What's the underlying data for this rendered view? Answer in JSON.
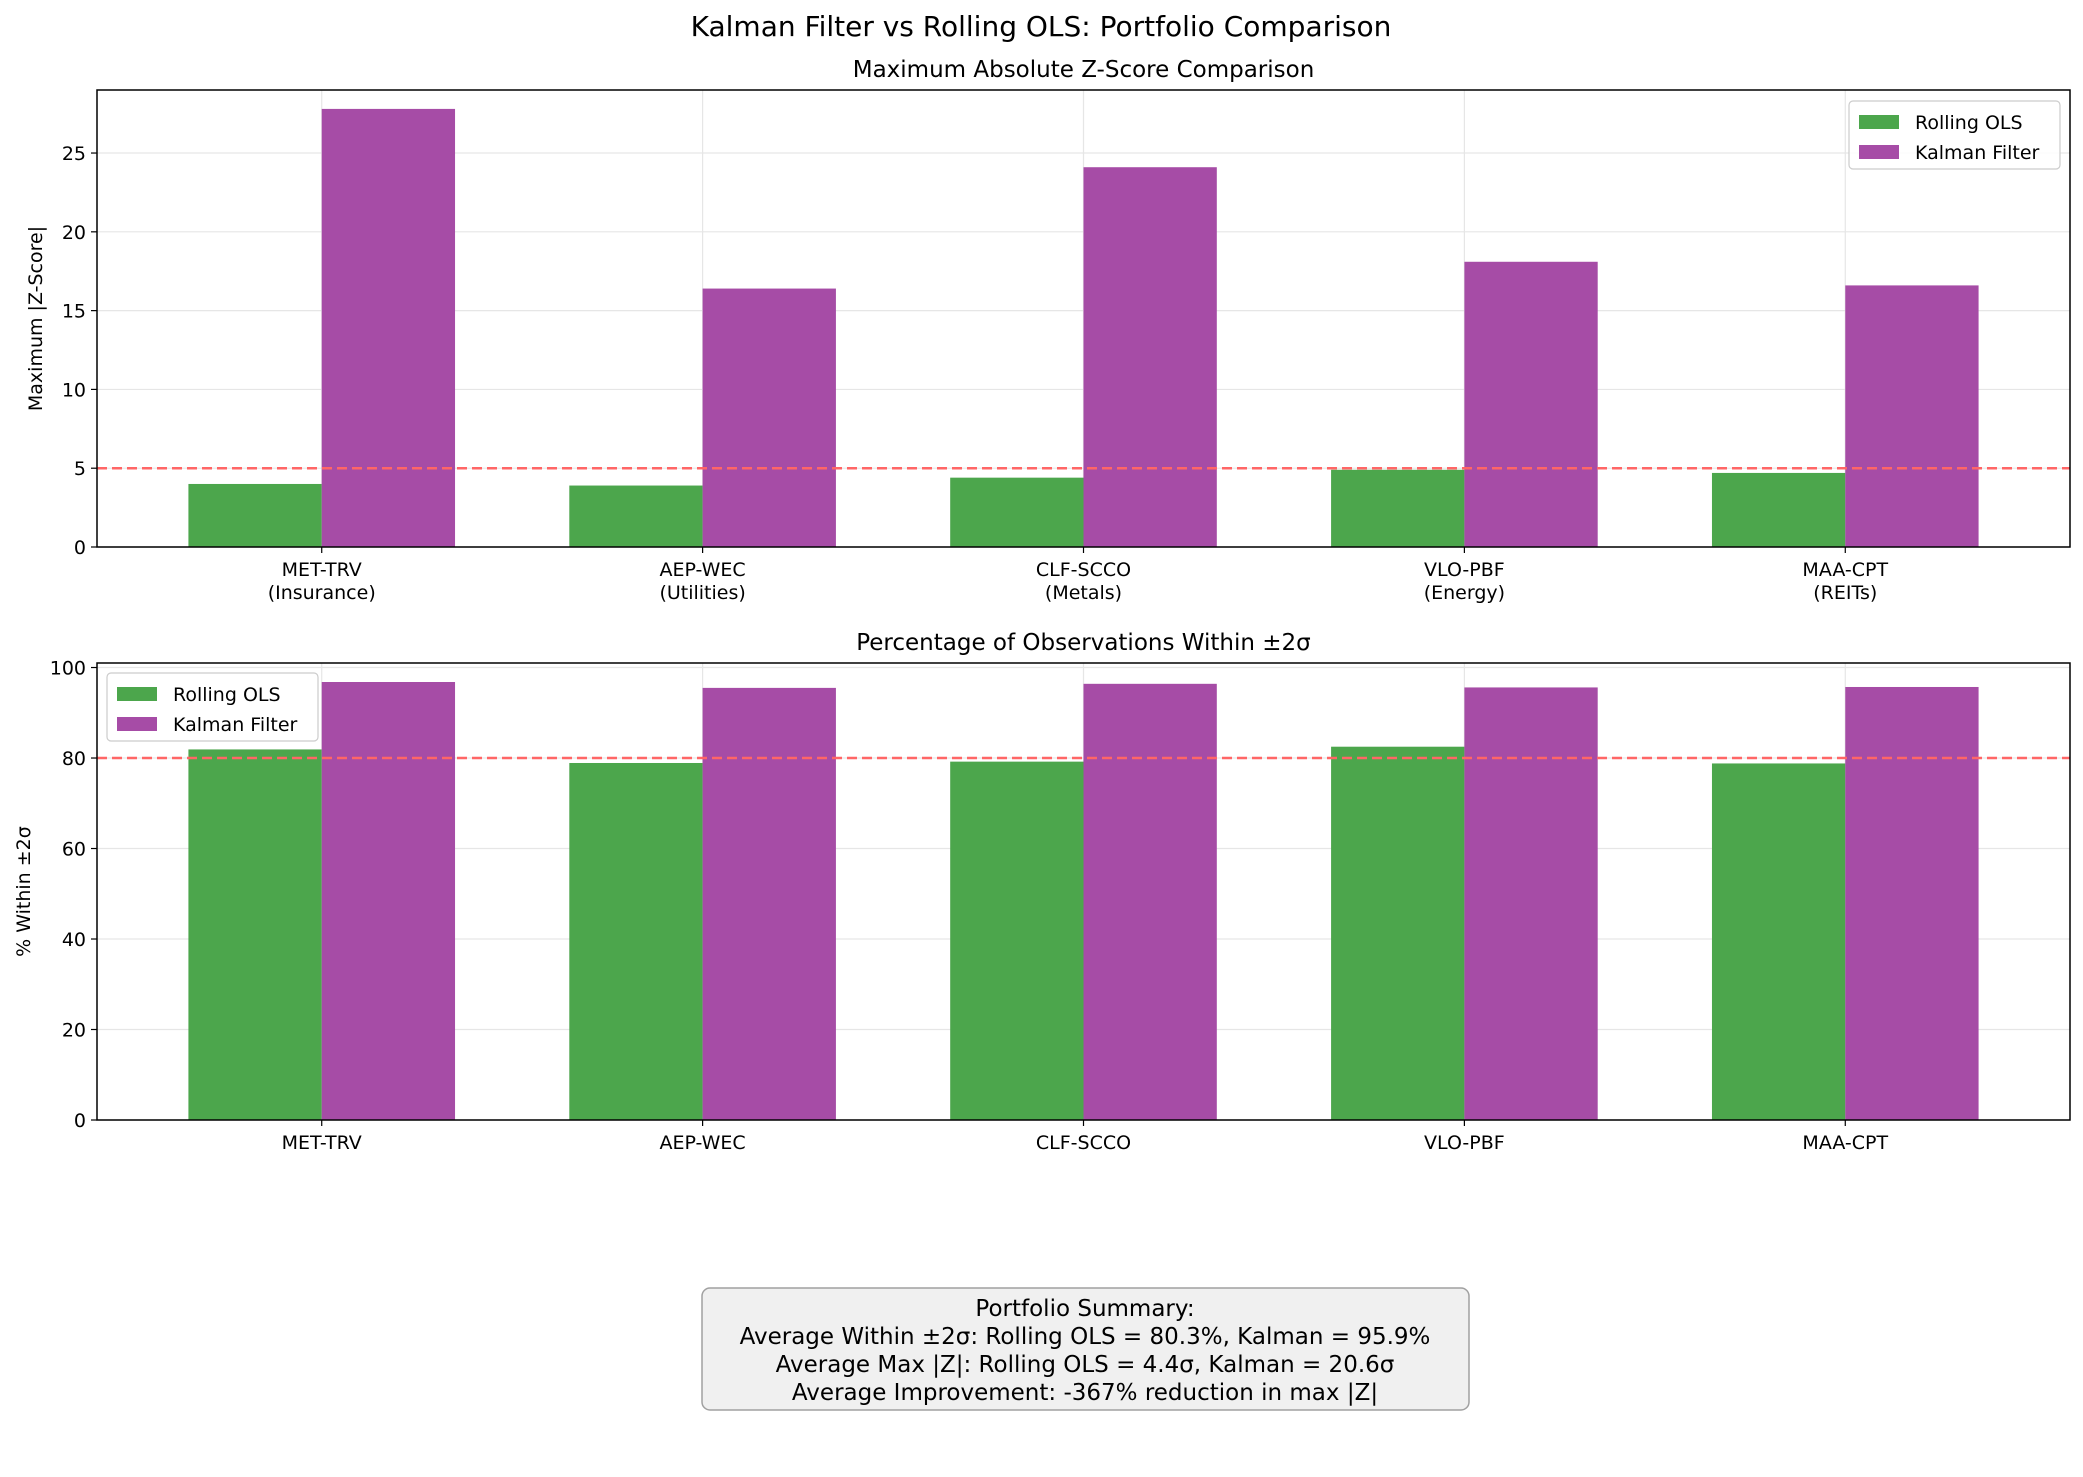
{
  "suptitle": "Kalman Filter vs Rolling OLS: Portfolio Comparison",
  "colors": {
    "rolling_ols": "#4ca64c",
    "kalman": "#a64ca6",
    "threshold": "#ff6666",
    "summary_bg": "#f0f0f0",
    "summary_border": "#a0a0a0"
  },
  "chart_data": [
    {
      "type": "bar",
      "title": "Maximum Absolute Z-Score Comparison",
      "xlabel": "",
      "ylabel": "Maximum |Z-Score|",
      "categories": [
        "MET-TRV\n(Insurance)",
        "AEP-WEC\n(Utilities)",
        "CLF-SCCO\n(Metals)",
        "VLO-PBF\n(Energy)",
        "MAA-CPT\n(REITs)"
      ],
      "series": [
        {
          "name": "Rolling OLS",
          "color": "#4ca64c",
          "values": [
            4.0,
            3.9,
            4.4,
            4.9,
            4.7
          ]
        },
        {
          "name": "Kalman Filter",
          "color": "#a64ca6",
          "values": [
            27.8,
            16.4,
            24.1,
            18.1,
            16.6
          ]
        }
      ],
      "ylim": [
        0,
        29
      ],
      "yticks": [
        0,
        5,
        10,
        15,
        20,
        25
      ],
      "threshold": 5,
      "legend": "upper right",
      "grid": true
    },
    {
      "type": "bar",
      "title": "Percentage of Observations Within ±2σ",
      "xlabel": "",
      "ylabel": "% Within ±2σ",
      "categories": [
        "MET-TRV",
        "AEP-WEC",
        "CLF-SCCO",
        "VLO-PBF",
        "MAA-CPT"
      ],
      "series": [
        {
          "name": "Rolling OLS",
          "color": "#4ca64c",
          "values": [
            81.9,
            78.9,
            79.2,
            82.5,
            78.8
          ]
        },
        {
          "name": "Kalman Filter",
          "color": "#a64ca6",
          "values": [
            96.8,
            95.5,
            96.4,
            95.6,
            95.7
          ]
        }
      ],
      "ylim": [
        0,
        101
      ],
      "yticks": [
        0,
        20,
        40,
        60,
        80,
        100
      ],
      "threshold": 80,
      "legend": "upper left",
      "grid": true
    }
  ],
  "summary": {
    "lines": [
      "Portfolio Summary:",
      "Average Within ±2σ: Rolling OLS = 80.3%, Kalman = 95.9%",
      "Average Max |Z|: Rolling OLS = 4.4σ, Kalman = 20.6σ",
      "Average Improvement: -367% reduction in max |Z|"
    ]
  }
}
